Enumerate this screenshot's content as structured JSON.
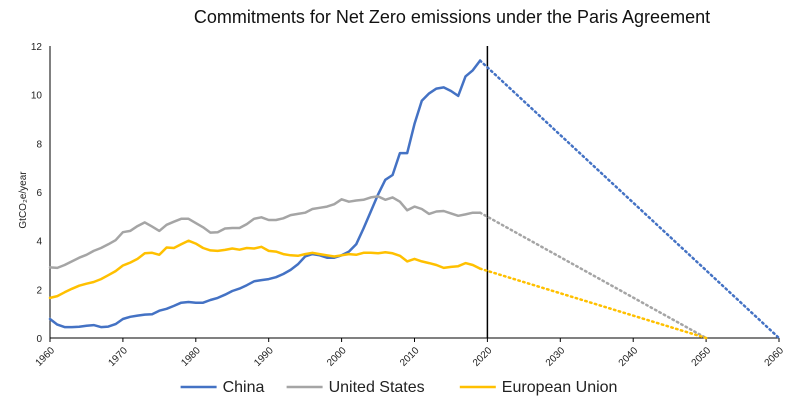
{
  "chart_data": {
    "type": "line",
    "title": "Commitments for Net Zero emissions under the Paris Agreement",
    "xlabel": "",
    "ylabel": "GtCO₂e/year",
    "xlim": [
      1960,
      2060
    ],
    "ylim": [
      0,
      12
    ],
    "x_ticks": [
      "1960",
      "1970",
      "1980",
      "1990",
      "2000",
      "2010",
      "2020",
      "2030",
      "2040",
      "2050",
      "2060"
    ],
    "y_ticks": [
      "0",
      "2",
      "4",
      "6",
      "8",
      "10",
      "12"
    ],
    "grid": false,
    "legend_position": "bottom",
    "marker_line_x": 2020,
    "series": [
      {
        "name": "China",
        "color": "#4472C4",
        "x": [
          1960,
          1961,
          1962,
          1963,
          1964,
          1965,
          1966,
          1967,
          1968,
          1969,
          1970,
          1971,
          1972,
          1973,
          1974,
          1975,
          1976,
          1977,
          1978,
          1979,
          1980,
          1981,
          1982,
          1983,
          1984,
          1985,
          1986,
          1987,
          1988,
          1989,
          1990,
          1991,
          1992,
          1993,
          1994,
          1995,
          1996,
          1997,
          1998,
          1999,
          2000,
          2001,
          2002,
          2003,
          2004,
          2005,
          2006,
          2007,
          2008,
          2009,
          2010,
          2011,
          2012,
          2013,
          2014,
          2015,
          2016,
          2017,
          2018,
          2019
        ],
        "values": [
          0.78,
          0.55,
          0.45,
          0.45,
          0.46,
          0.5,
          0.53,
          0.45,
          0.47,
          0.57,
          0.78,
          0.87,
          0.92,
          0.96,
          0.98,
          1.12,
          1.2,
          1.32,
          1.45,
          1.48,
          1.45,
          1.45,
          1.56,
          1.65,
          1.78,
          1.93,
          2.03,
          2.17,
          2.33,
          2.38,
          2.42,
          2.5,
          2.63,
          2.8,
          3.03,
          3.35,
          3.45,
          3.4,
          3.3,
          3.3,
          3.4,
          3.55,
          3.85,
          4.5,
          5.2,
          5.9,
          6.5,
          6.7,
          7.6,
          7.6,
          8.8,
          9.75,
          10.05,
          10.25,
          10.3,
          10.15,
          9.95,
          10.75,
          11.0,
          11.4
        ],
        "projection": {
          "x": [
            2019,
            2060
          ],
          "values": [
            11.4,
            0
          ]
        }
      },
      {
        "name": "United States",
        "color": "#A5A5A5",
        "x": [
          1960,
          1961,
          1962,
          1963,
          1964,
          1965,
          1966,
          1967,
          1968,
          1969,
          1970,
          1971,
          1972,
          1973,
          1974,
          1975,
          1976,
          1977,
          1978,
          1979,
          1980,
          1981,
          1982,
          1983,
          1984,
          1985,
          1986,
          1987,
          1988,
          1989,
          1990,
          1991,
          1992,
          1993,
          1994,
          1995,
          1996,
          1997,
          1998,
          1999,
          2000,
          2001,
          2002,
          2003,
          2004,
          2005,
          2006,
          2007,
          2008,
          2009,
          2010,
          2011,
          2012,
          2013,
          2014,
          2015,
          2016,
          2017,
          2018,
          2019
        ],
        "values": [
          2.9,
          2.88,
          3.0,
          3.15,
          3.3,
          3.42,
          3.58,
          3.7,
          3.85,
          4.02,
          4.35,
          4.4,
          4.6,
          4.75,
          4.58,
          4.4,
          4.65,
          4.78,
          4.9,
          4.9,
          4.72,
          4.55,
          4.33,
          4.35,
          4.5,
          4.52,
          4.52,
          4.68,
          4.9,
          4.96,
          4.85,
          4.85,
          4.92,
          5.05,
          5.1,
          5.15,
          5.3,
          5.35,
          5.4,
          5.5,
          5.7,
          5.6,
          5.65,
          5.68,
          5.78,
          5.82,
          5.68,
          5.78,
          5.6,
          5.25,
          5.4,
          5.3,
          5.1,
          5.2,
          5.22,
          5.12,
          5.02,
          5.08,
          5.15,
          5.15
        ],
        "projection": {
          "x": [
            2019,
            2050
          ],
          "values": [
            5.15,
            0
          ]
        }
      },
      {
        "name": "European Union",
        "color": "#FFC000",
        "x": [
          1960,
          1961,
          1962,
          1963,
          1964,
          1965,
          1966,
          1967,
          1968,
          1969,
          1970,
          1971,
          1972,
          1973,
          1974,
          1975,
          1976,
          1977,
          1978,
          1979,
          1980,
          1981,
          1982,
          1983,
          1984,
          1985,
          1986,
          1987,
          1988,
          1989,
          1990,
          1991,
          1992,
          1993,
          1994,
          1995,
          1996,
          1997,
          1998,
          1999,
          2000,
          2001,
          2002,
          2003,
          2004,
          2005,
          2006,
          2007,
          2008,
          2009,
          2010,
          2011,
          2012,
          2013,
          2014,
          2015,
          2016,
          2017,
          2018,
          2019
        ],
        "values": [
          1.65,
          1.72,
          1.88,
          2.02,
          2.15,
          2.23,
          2.3,
          2.42,
          2.58,
          2.75,
          2.98,
          3.1,
          3.25,
          3.48,
          3.5,
          3.42,
          3.72,
          3.7,
          3.85,
          4.0,
          3.88,
          3.7,
          3.6,
          3.58,
          3.62,
          3.68,
          3.63,
          3.7,
          3.68,
          3.75,
          3.58,
          3.55,
          3.45,
          3.4,
          3.38,
          3.45,
          3.5,
          3.45,
          3.4,
          3.35,
          3.4,
          3.45,
          3.42,
          3.5,
          3.5,
          3.48,
          3.52,
          3.48,
          3.38,
          3.15,
          3.25,
          3.15,
          3.08,
          3.0,
          2.88,
          2.92,
          2.95,
          3.08,
          3.0,
          2.85
        ],
        "projection": {
          "x": [
            2019,
            2050
          ],
          "values": [
            2.85,
            0
          ]
        }
      }
    ]
  }
}
